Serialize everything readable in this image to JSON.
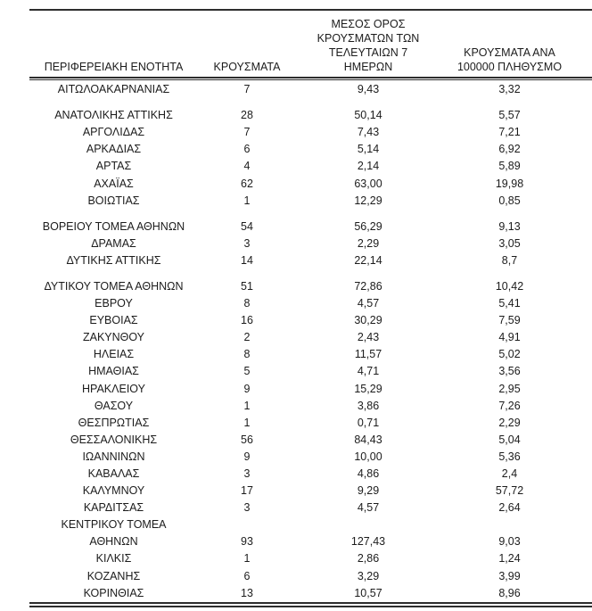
{
  "table": {
    "headers": {
      "col1": "ΠΕΡΙΦΕΡΕΙΑΚΗ ΕΝΟΤΗΤΑ",
      "col2": "ΚΡΟΥΣΜΑΤΑ",
      "col3": "ΜΕΣΟΣ ΟΡΟΣ\nΚΡΟΥΣΜΑΤΩΝ ΤΩΝ\nΤΕΛΕΥΤΑΙΩΝ 7\nΗΜΕΡΩΝ",
      "col4": "ΚΡΟΥΣΜΑΤΑ ΑΝΑ\n100000 ΠΛΗΘΥΣΜΟ"
    },
    "rows": [
      {
        "name": "ΑΙΤΩΛΟΑΚΑΡΝΑΝΙΑΣ",
        "cases": "7",
        "avg7": "9,43",
        "per100k": "3,32"
      },
      {
        "spacer": true
      },
      {
        "name": "ΑΝΑΤΟΛΙΚΗΣ ΑΤΤΙΚΗΣ",
        "cases": "28",
        "avg7": "50,14",
        "per100k": "5,57"
      },
      {
        "name": "ΑΡΓΟΛΙΔΑΣ",
        "cases": "7",
        "avg7": "7,43",
        "per100k": "7,21"
      },
      {
        "name": "ΑΡΚΑΔΙΑΣ",
        "cases": "6",
        "avg7": "5,14",
        "per100k": "6,92"
      },
      {
        "name": "ΑΡΤΑΣ",
        "cases": "4",
        "avg7": "2,14",
        "per100k": "5,89"
      },
      {
        "name": "ΑΧΑΪΑΣ",
        "cases": "62",
        "avg7": "63,00",
        "per100k": "19,98"
      },
      {
        "name": "ΒΟΙΩΤΙΑΣ",
        "cases": "1",
        "avg7": "12,29",
        "per100k": "0,85"
      },
      {
        "spacer": true
      },
      {
        "name": "ΒΟΡΕΙΟΥ ΤΟΜΕΑ ΑΘΗΝΩΝ",
        "cases": "54",
        "avg7": "56,29",
        "per100k": "9,13"
      },
      {
        "name": "ΔΡΑΜΑΣ",
        "cases": "3",
        "avg7": "2,29",
        "per100k": "3,05"
      },
      {
        "name": "ΔΥΤΙΚΗΣ ΑΤΤΙΚΗΣ",
        "cases": "14",
        "avg7": "22,14",
        "per100k": "8,7"
      },
      {
        "spacer": true
      },
      {
        "name": "ΔΥΤΙΚΟΥ ΤΟΜΕΑ ΑΘΗΝΩΝ",
        "cases": "51",
        "avg7": "72,86",
        "per100k": "10,42"
      },
      {
        "name": "ΕΒΡΟΥ",
        "cases": "8",
        "avg7": "4,57",
        "per100k": "5,41"
      },
      {
        "name": "ΕΥΒΟΙΑΣ",
        "cases": "16",
        "avg7": "30,29",
        "per100k": "7,59"
      },
      {
        "name": "ΖΑΚΥΝΘΟΥ",
        "cases": "2",
        "avg7": "2,43",
        "per100k": "4,91"
      },
      {
        "name": "ΗΛΕΙΑΣ",
        "cases": "8",
        "avg7": "11,57",
        "per100k": "5,02"
      },
      {
        "name": "ΗΜΑΘΙΑΣ",
        "cases": "5",
        "avg7": "4,71",
        "per100k": "3,56"
      },
      {
        "name": "ΗΡΑΚΛΕΙΟΥ",
        "cases": "9",
        "avg7": "15,29",
        "per100k": "2,95"
      },
      {
        "name": "ΘΑΣΟΥ",
        "cases": "1",
        "avg7": "3,86",
        "per100k": "7,26"
      },
      {
        "name": "ΘΕΣΠΡΩΤΙΑΣ",
        "cases": "1",
        "avg7": "0,71",
        "per100k": "2,29"
      },
      {
        "name": "ΘΕΣΣΑΛΟΝΙΚΗΣ",
        "cases": "56",
        "avg7": "84,43",
        "per100k": "5,04"
      },
      {
        "name": "ΙΩΑΝΝΙΝΩΝ",
        "cases": "9",
        "avg7": "10,00",
        "per100k": "5,36"
      },
      {
        "name": "ΚΑΒΑΛΑΣ",
        "cases": "3",
        "avg7": "4,86",
        "per100k": "2,4"
      },
      {
        "name": "ΚΑΛΥΜΝΟΥ",
        "cases": "17",
        "avg7": "9,29",
        "per100k": "57,72"
      },
      {
        "name": "ΚΑΡΔΙΤΣΑΣ",
        "cases": "3",
        "avg7": "4,57",
        "per100k": "2,64"
      },
      {
        "name": "ΚΕΝΤΡΙΚΟΥ ΤΟΜΕΑ",
        "cases": "",
        "avg7": "",
        "per100k": ""
      },
      {
        "name": "ΑΘΗΝΩΝ",
        "cases": "93",
        "avg7": "127,43",
        "per100k": "9,03"
      },
      {
        "name": "ΚΙΛΚΙΣ",
        "cases": "1",
        "avg7": "2,86",
        "per100k": "1,24"
      },
      {
        "name": "ΚΟΖΑΝΗΣ",
        "cases": "6",
        "avg7": "3,29",
        "per100k": "3,99"
      },
      {
        "name": "ΚΟΡΙΝΘΙΑΣ",
        "cases": "13",
        "avg7": "10,57",
        "per100k": "8,96"
      }
    ]
  }
}
